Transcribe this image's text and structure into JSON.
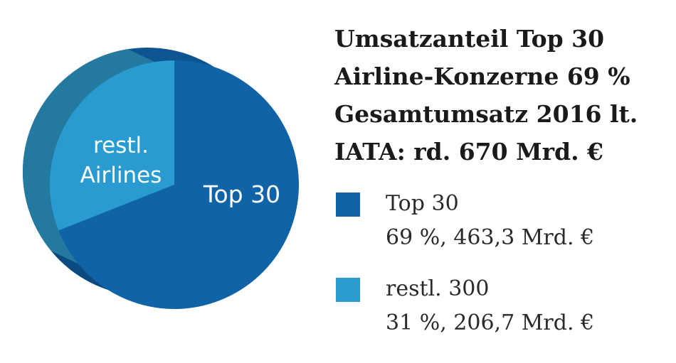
{
  "title_lines": [
    "Umsatzanteil Top 30",
    "Airline-Konzerne 69 %",
    "Gesamtumsatz 2016 lt.",
    "IATA: rd. 670 Mrd. €"
  ],
  "colors": {
    "top30": "#0f63a6",
    "rest": "#2a9bd0",
    "side_rest": "#24799f",
    "side_top30": "#0b4a80",
    "back": "#0d5590"
  },
  "legend": [
    {
      "line1": "Top 30",
      "line2": "69 %, 463,3 Mrd. €"
    },
    {
      "line1": "restl. 300",
      "line2": "31 %, 206,7 Mrd. €"
    }
  ],
  "chart_data": {
    "type": "pie",
    "title": "Umsatzanteil Top 30 Airline-Konzerne 69 % Gesamtumsatz 2016 lt. IATA: rd. 670 Mrd. €",
    "slices": [
      {
        "label": "Top 30",
        "name": "Top 30",
        "percent": 69,
        "value": 463.3,
        "unit": "Mrd. €",
        "color": "#0f63a6"
      },
      {
        "label": "restl. Airlines",
        "name": "restl. 300",
        "percent": 31,
        "value": 206.7,
        "unit": "Mrd. €",
        "color": "#2a9bd0"
      }
    ],
    "slice_labels": [
      {
        "lines": [
          "Top 30"
        ]
      },
      {
        "lines": [
          "restl.",
          "Airlines"
        ]
      }
    ],
    "legend_position": "right"
  }
}
